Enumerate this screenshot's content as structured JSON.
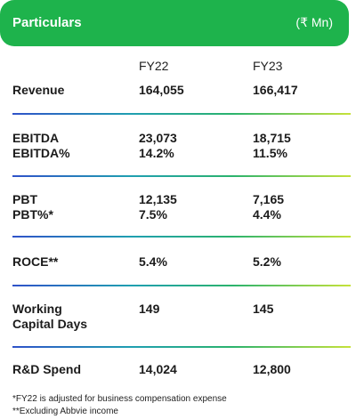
{
  "header": {
    "title": "Particulars",
    "unit": "(₹ Mn)"
  },
  "years": [
    "FY22",
    "FY23"
  ],
  "rows": {
    "revenue": {
      "label": "Revenue",
      "fy22": "164,055",
      "fy23": "166,417"
    },
    "ebitda": {
      "label": "EBITDA",
      "fy22": "23,073",
      "fy23": "18,715"
    },
    "ebitda_pct": {
      "label": "EBITDA%",
      "fy22": "14.2%",
      "fy23": "11.5%"
    },
    "pbt": {
      "label": "PBT",
      "fy22": "12,135",
      "fy23": "7,165"
    },
    "pbt_pct": {
      "label": "PBT%*",
      "fy22": "7.5%",
      "fy23": "4.4%"
    },
    "roce": {
      "label": "ROCE**",
      "fy22": "5.4%",
      "fy23": "5.2%"
    },
    "wcd_line1": {
      "label": "Working"
    },
    "wcd_line2": {
      "label": "Capital Days"
    },
    "wcd": {
      "fy22": "149",
      "fy23": "145"
    },
    "rd": {
      "label": "R&D Spend",
      "fy22": "14,024",
      "fy23": "12,800"
    }
  },
  "footnotes": [
    "*FY22 is adjusted for business compensation expense",
    "**Excluding Abbvie income"
  ],
  "colors": {
    "header_bg": "#1eb34c",
    "divider_start": "#2f52c9",
    "divider_end": "#c6e23a"
  }
}
